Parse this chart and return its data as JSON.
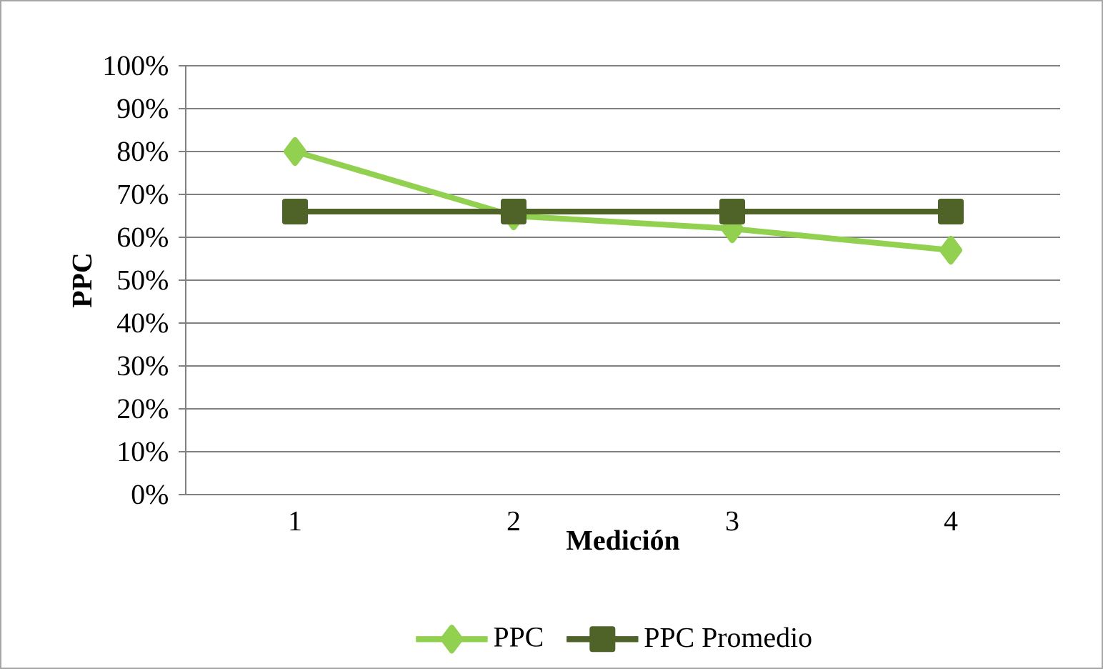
{
  "chart_data": {
    "type": "line",
    "xlabel": "Medición",
    "ylabel": "PPC",
    "categories": [
      "1",
      "2",
      "3",
      "4"
    ],
    "series": [
      {
        "name": "PPC",
        "color": "#92d050",
        "marker": "diamond",
        "values": [
          80,
          65,
          62,
          57
        ]
      },
      {
        "name": "PPC Promedio",
        "color": "#4f6228",
        "marker": "square",
        "values": [
          66,
          66,
          66,
          66
        ]
      }
    ],
    "ylim": [
      0,
      100
    ],
    "yticks": [
      {
        "value": 0,
        "label": "0%"
      },
      {
        "value": 10,
        "label": "10%"
      },
      {
        "value": 20,
        "label": "20%"
      },
      {
        "value": 30,
        "label": "30%"
      },
      {
        "value": 40,
        "label": "40%"
      },
      {
        "value": 50,
        "label": "50%"
      },
      {
        "value": 60,
        "label": "60%"
      },
      {
        "value": 70,
        "label": "70%"
      },
      {
        "value": 80,
        "label": "80%"
      },
      {
        "value": 90,
        "label": "90%"
      },
      {
        "value": 100,
        "label": "100%"
      }
    ],
    "grid": "y",
    "legend": "bottom"
  }
}
